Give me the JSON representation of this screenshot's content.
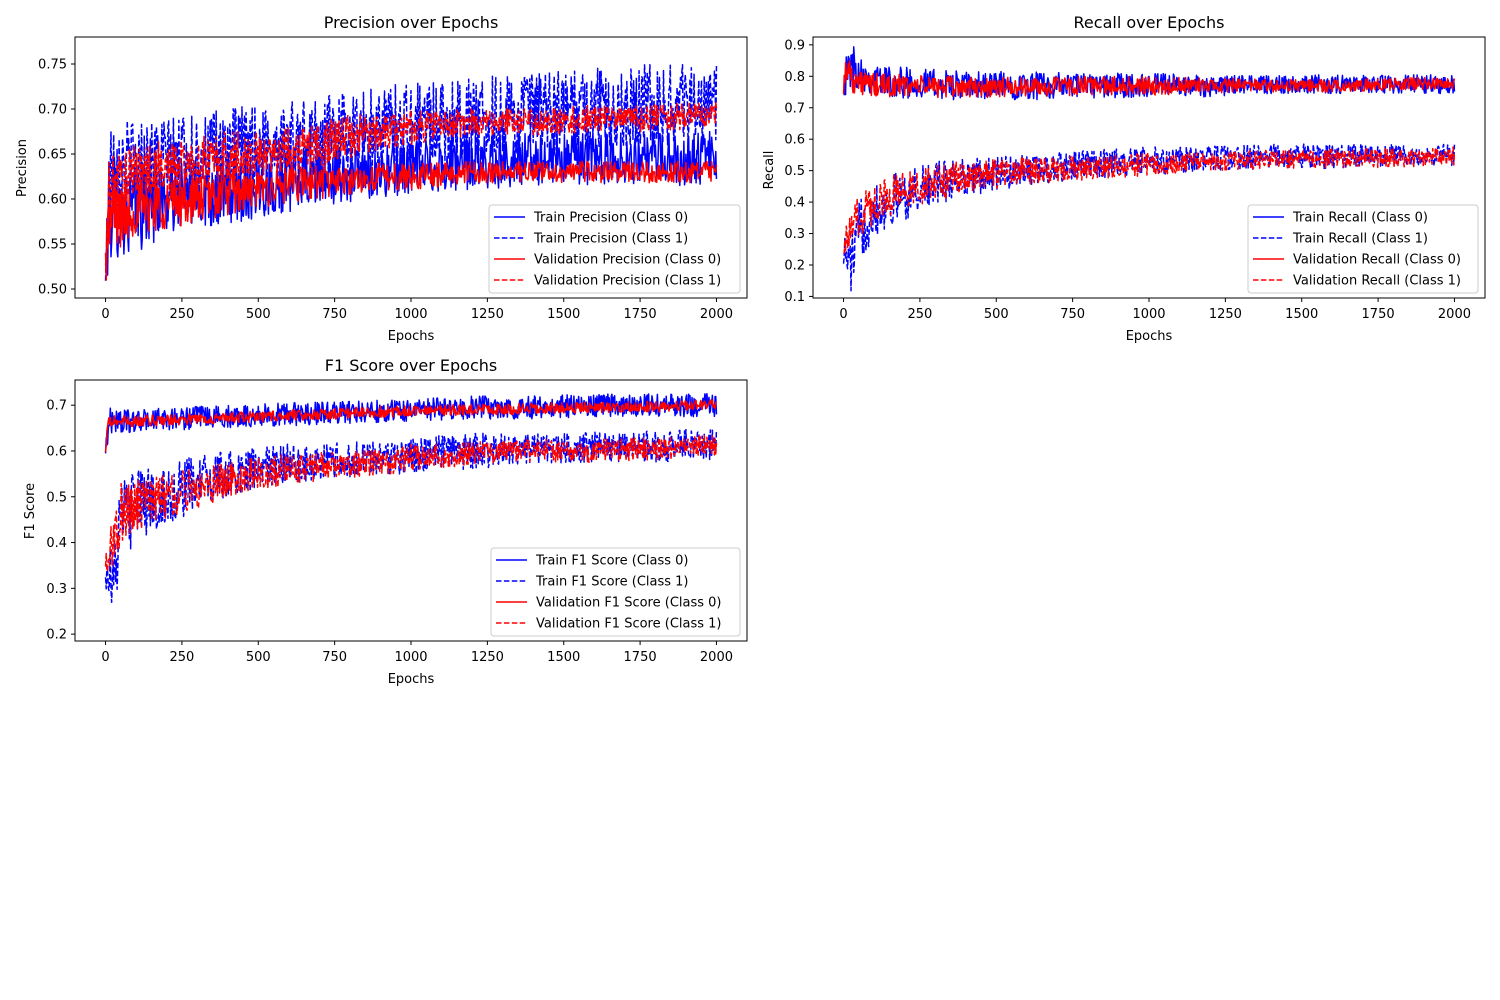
{
  "colors": {
    "train": "#0000ff",
    "validation": "#ff0000"
  },
  "chart_data": [
    {
      "type": "line",
      "title": "Precision over Epochs",
      "xlabel": "Epochs",
      "ylabel": "Precision",
      "xlim": [
        -100,
        2100
      ],
      "ylim": [
        0.49,
        0.78
      ],
      "xticks": [
        0,
        250,
        500,
        750,
        1000,
        1250,
        1500,
        1750,
        2000
      ],
      "yticks": [
        0.5,
        0.55,
        0.6,
        0.65,
        0.7,
        0.75
      ],
      "ytick_labels": [
        "0.50",
        "0.55",
        "0.60",
        "0.65",
        "0.70",
        "0.75"
      ],
      "grid": false,
      "legend_position": "lower right",
      "series": [
        {
          "name": "Train Precision (Class 0)",
          "color": "#0000ff",
          "dash": false,
          "x": [
            0,
            10,
            25,
            50,
            100,
            200,
            300,
            400,
            500,
            600,
            700,
            800,
            900,
            1000,
            1200,
            1400,
            1600,
            1800,
            2000
          ],
          "y": [
            0.52,
            0.58,
            0.6,
            0.58,
            0.59,
            0.6,
            0.605,
            0.61,
            0.615,
            0.62,
            0.625,
            0.625,
            0.63,
            0.635,
            0.64,
            0.645,
            0.645,
            0.645,
            0.645
          ],
          "amplitude": [
            0.03,
            0.06,
            0.06,
            0.05,
            0.05,
            0.04,
            0.04,
            0.04,
            0.035,
            0.035,
            0.035,
            0.03,
            0.03,
            0.03,
            0.03,
            0.03,
            0.03,
            0.03,
            0.03
          ]
        },
        {
          "name": "Train Precision (Class 1)",
          "color": "#0000ff",
          "dash": true,
          "x": [
            0,
            10,
            25,
            50,
            100,
            200,
            300,
            400,
            500,
            600,
            700,
            800,
            900,
            1000,
            1200,
            1400,
            1600,
            1800,
            2000
          ],
          "y": [
            0.5,
            0.62,
            0.64,
            0.64,
            0.64,
            0.645,
            0.65,
            0.655,
            0.66,
            0.665,
            0.67,
            0.675,
            0.68,
            0.685,
            0.69,
            0.695,
            0.7,
            0.705,
            0.705
          ],
          "amplitude": [
            0.03,
            0.06,
            0.06,
            0.05,
            0.05,
            0.045,
            0.045,
            0.045,
            0.045,
            0.045,
            0.045,
            0.045,
            0.045,
            0.045,
            0.045,
            0.045,
            0.045,
            0.045,
            0.045
          ]
        },
        {
          "name": "Validation Precision (Class 0)",
          "color": "#ff0000",
          "dash": false,
          "x": [
            0,
            10,
            25,
            50,
            100,
            200,
            300,
            400,
            500,
            600,
            700,
            800,
            900,
            1000,
            1200,
            1400,
            1600,
            1800,
            2000
          ],
          "y": [
            0.53,
            0.57,
            0.58,
            0.58,
            0.59,
            0.595,
            0.6,
            0.605,
            0.61,
            0.615,
            0.62,
            0.62,
            0.625,
            0.625,
            0.63,
            0.63,
            0.63,
            0.63,
            0.63
          ],
          "amplitude": [
            0.03,
            0.04,
            0.04,
            0.035,
            0.03,
            0.03,
            0.025,
            0.025,
            0.02,
            0.02,
            0.02,
            0.015,
            0.015,
            0.015,
            0.012,
            0.012,
            0.012,
            0.012,
            0.012
          ]
        },
        {
          "name": "Validation Precision (Class 1)",
          "color": "#ff0000",
          "dash": true,
          "x": [
            0,
            10,
            25,
            50,
            100,
            200,
            300,
            400,
            500,
            600,
            700,
            800,
            900,
            1000,
            1200,
            1400,
            1600,
            1800,
            2000
          ],
          "y": [
            0.51,
            0.6,
            0.62,
            0.62,
            0.63,
            0.635,
            0.64,
            0.645,
            0.65,
            0.655,
            0.66,
            0.67,
            0.675,
            0.68,
            0.685,
            0.685,
            0.69,
            0.69,
            0.695
          ],
          "amplitude": [
            0.03,
            0.04,
            0.035,
            0.035,
            0.03,
            0.03,
            0.03,
            0.03,
            0.025,
            0.025,
            0.025,
            0.025,
            0.02,
            0.02,
            0.015,
            0.015,
            0.015,
            0.015,
            0.015
          ]
        }
      ]
    },
    {
      "type": "line",
      "title": "Recall over Epochs",
      "xlabel": "Epochs",
      "ylabel": "Recall",
      "xlim": [
        -100,
        2100
      ],
      "ylim": [
        0.095,
        0.925
      ],
      "xticks": [
        0,
        250,
        500,
        750,
        1000,
        1250,
        1500,
        1750,
        2000
      ],
      "yticks": [
        0.1,
        0.2,
        0.3,
        0.4,
        0.5,
        0.6,
        0.7,
        0.8,
        0.9
      ],
      "ytick_labels": [
        "0.1",
        "0.2",
        "0.3",
        "0.4",
        "0.5",
        "0.6",
        "0.7",
        "0.8",
        "0.9"
      ],
      "grid": false,
      "legend_position": "lower right",
      "series": [
        {
          "name": "Train Recall (Class 0)",
          "color": "#0000ff",
          "dash": false,
          "x": [
            0,
            10,
            25,
            50,
            100,
            200,
            400,
            600,
            800,
            1000,
            1200,
            1400,
            1600,
            1800,
            2000
          ],
          "y": [
            0.78,
            0.8,
            0.84,
            0.82,
            0.79,
            0.78,
            0.77,
            0.77,
            0.77,
            0.77,
            0.77,
            0.775,
            0.775,
            0.775,
            0.775
          ],
          "amplitude": [
            0.04,
            0.07,
            0.07,
            0.06,
            0.05,
            0.05,
            0.045,
            0.045,
            0.04,
            0.04,
            0.035,
            0.03,
            0.03,
            0.03,
            0.03
          ]
        },
        {
          "name": "Train Recall (Class 1)",
          "color": "#0000ff",
          "dash": true,
          "x": [
            0,
            10,
            25,
            50,
            100,
            200,
            300,
            400,
            600,
            800,
            1000,
            1200,
            1400,
            1600,
            1800,
            2000
          ],
          "y": [
            0.25,
            0.22,
            0.2,
            0.3,
            0.38,
            0.42,
            0.46,
            0.48,
            0.5,
            0.52,
            0.53,
            0.54,
            0.545,
            0.545,
            0.55,
            0.55
          ],
          "amplitude": [
            0.05,
            0.07,
            0.09,
            0.1,
            0.09,
            0.08,
            0.07,
            0.06,
            0.05,
            0.045,
            0.045,
            0.04,
            0.04,
            0.04,
            0.035,
            0.035
          ]
        },
        {
          "name": "Validation Recall (Class 0)",
          "color": "#ff0000",
          "dash": false,
          "x": [
            0,
            10,
            25,
            50,
            100,
            200,
            400,
            600,
            800,
            1000,
            1200,
            1400,
            1600,
            1800,
            2000
          ],
          "y": [
            0.77,
            0.84,
            0.8,
            0.78,
            0.77,
            0.77,
            0.765,
            0.765,
            0.77,
            0.77,
            0.77,
            0.77,
            0.77,
            0.775,
            0.78
          ],
          "amplitude": [
            0.03,
            0.05,
            0.05,
            0.04,
            0.04,
            0.035,
            0.035,
            0.03,
            0.03,
            0.03,
            0.025,
            0.02,
            0.02,
            0.02,
            0.02
          ]
        },
        {
          "name": "Validation Recall (Class 1)",
          "color": "#ff0000",
          "dash": true,
          "x": [
            0,
            10,
            25,
            50,
            100,
            200,
            300,
            400,
            600,
            800,
            1000,
            1200,
            1400,
            1600,
            1800,
            2000
          ],
          "y": [
            0.27,
            0.28,
            0.3,
            0.36,
            0.4,
            0.44,
            0.46,
            0.48,
            0.5,
            0.51,
            0.52,
            0.53,
            0.535,
            0.54,
            0.54,
            0.545
          ],
          "amplitude": [
            0.04,
            0.05,
            0.06,
            0.07,
            0.07,
            0.06,
            0.06,
            0.05,
            0.045,
            0.04,
            0.035,
            0.03,
            0.03,
            0.03,
            0.03,
            0.03
          ]
        }
      ]
    },
    {
      "type": "line",
      "title": "F1 Score over Epochs",
      "xlabel": "Epochs",
      "ylabel": "F1 Score",
      "xlim": [
        -100,
        2100
      ],
      "ylim": [
        0.185,
        0.755
      ],
      "xticks": [
        0,
        250,
        500,
        750,
        1000,
        1250,
        1500,
        1750,
        2000
      ],
      "yticks": [
        0.2,
        0.3,
        0.4,
        0.5,
        0.6,
        0.7
      ],
      "ytick_labels": [
        "0.2",
        "0.3",
        "0.4",
        "0.5",
        "0.6",
        "0.7"
      ],
      "grid": false,
      "legend_position": "lower right",
      "series": [
        {
          "name": "Train F1 Score (Class 0)",
          "color": "#0000ff",
          "dash": false,
          "x": [
            0,
            10,
            25,
            50,
            100,
            200,
            400,
            600,
            800,
            1000,
            1200,
            1400,
            1600,
            1800,
            2000
          ],
          "y": [
            0.6,
            0.66,
            0.67,
            0.665,
            0.665,
            0.67,
            0.675,
            0.68,
            0.685,
            0.69,
            0.695,
            0.695,
            0.7,
            0.7,
            0.7
          ],
          "amplitude": [
            0.03,
            0.03,
            0.03,
            0.025,
            0.025,
            0.025,
            0.025,
            0.025,
            0.025,
            0.025,
            0.025,
            0.025,
            0.025,
            0.025,
            0.025
          ]
        },
        {
          "name": "Train F1 Score (Class 1)",
          "color": "#0000ff",
          "dash": true,
          "x": [
            0,
            10,
            25,
            50,
            100,
            200,
            300,
            400,
            600,
            800,
            1000,
            1200,
            1400,
            1600,
            1800,
            2000
          ],
          "y": [
            0.33,
            0.35,
            0.3,
            0.45,
            0.48,
            0.5,
            0.53,
            0.55,
            0.57,
            0.58,
            0.59,
            0.6,
            0.605,
            0.61,
            0.61,
            0.615
          ],
          "amplitude": [
            0.04,
            0.06,
            0.08,
            0.09,
            0.08,
            0.07,
            0.06,
            0.05,
            0.045,
            0.04,
            0.04,
            0.04,
            0.035,
            0.035,
            0.035,
            0.035
          ]
        },
        {
          "name": "Validation F1 Score (Class 0)",
          "color": "#ff0000",
          "dash": false,
          "x": [
            0,
            10,
            25,
            50,
            100,
            200,
            400,
            600,
            800,
            1000,
            1200,
            1400,
            1600,
            1800,
            2000
          ],
          "y": [
            0.6,
            0.665,
            0.665,
            0.665,
            0.665,
            0.668,
            0.672,
            0.678,
            0.683,
            0.688,
            0.69,
            0.693,
            0.695,
            0.697,
            0.7
          ],
          "amplitude": [
            0.02,
            0.015,
            0.012,
            0.012,
            0.012,
            0.012,
            0.012,
            0.012,
            0.012,
            0.012,
            0.012,
            0.012,
            0.012,
            0.012,
            0.012
          ]
        },
        {
          "name": "Validation F1 Score (Class 1)",
          "color": "#ff0000",
          "dash": true,
          "x": [
            0,
            10,
            25,
            50,
            100,
            200,
            300,
            400,
            600,
            800,
            1000,
            1200,
            1400,
            1600,
            1800,
            2000
          ],
          "y": [
            0.35,
            0.37,
            0.4,
            0.46,
            0.48,
            0.5,
            0.52,
            0.54,
            0.56,
            0.57,
            0.585,
            0.595,
            0.6,
            0.6,
            0.605,
            0.61
          ],
          "amplitude": [
            0.03,
            0.05,
            0.06,
            0.07,
            0.06,
            0.05,
            0.045,
            0.04,
            0.035,
            0.03,
            0.03,
            0.025,
            0.025,
            0.025,
            0.025,
            0.025
          ]
        }
      ]
    }
  ]
}
